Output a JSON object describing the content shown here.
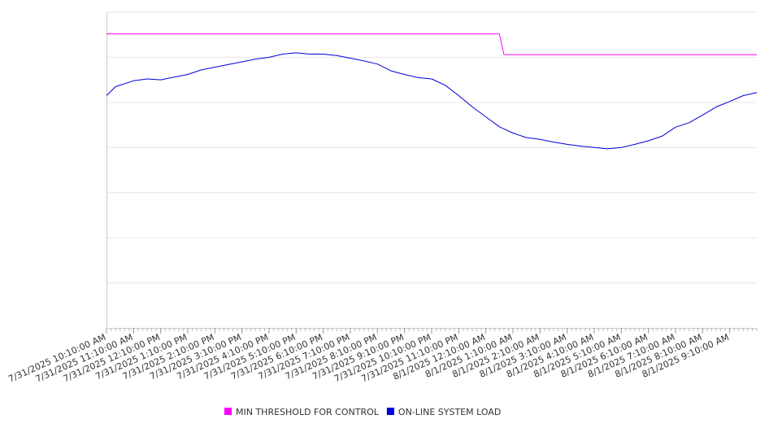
{
  "chart_data": {
    "type": "line",
    "title": "",
    "xlabel": "",
    "ylabel": "",
    "ylim": [
      0,
      7
    ],
    "grid": true,
    "legend_position": "bottom-center",
    "x_start": "7/31/2025 10:10:00 AM",
    "x_end": "8/1/2025 10:10:00 AM",
    "x_tick_labels": [
      "7/31/2025 10:10:00 AM",
      "7/31/2025 11:10:00 AM",
      "7/31/2025 12:10:00 PM",
      "7/31/2025 1:10:00 PM",
      "7/31/2025 2:10:00 PM",
      "7/31/2025 3:10:00 PM",
      "7/31/2025 4:10:00 PM",
      "7/31/2025 5:10:00 PM",
      "7/31/2025 6:10:00 PM",
      "7/31/2025 7:10:00 PM",
      "7/31/2025 8:10:00 PM",
      "7/31/2025 9:10:00 PM",
      "7/31/2025 10:10:00 PM",
      "7/31/2025 11:10:00 PM",
      "8/1/2025 12:10:00 AM",
      "8/1/2025 1:10:00 AM",
      "8/1/2025 2:10:00 AM",
      "8/1/2025 3:10:00 AM",
      "8/1/2025 4:10:00 AM",
      "8/1/2025 5:10:00 AM",
      "8/1/2025 6:10:00 AM",
      "8/1/2025 7:10:00 AM",
      "8/1/2025 8:10:00 AM",
      "8/1/2025 9:10:00 AM"
    ],
    "series": [
      {
        "name": "MIN THRESHOLD FOR CONTROL",
        "color": "#ff00ff",
        "x": [
          "7/31/2025 10:10:00 AM",
          "8/1/2025 12:40:00 AM",
          "8/1/2025 12:50:00 AM",
          "8/1/2025 10:10:00 AM"
        ],
        "y": [
          6.52,
          6.52,
          6.06,
          6.06
        ]
      },
      {
        "name": "ON-LINE SYSTEM LOAD",
        "color": "#0000dd",
        "x": [
          "7/31/2025 10:10:00 AM",
          "7/31/2025 10:30:00 AM",
          "7/31/2025 11:10:00 AM",
          "7/31/2025 11:40:00 AM",
          "7/31/2025 12:10:00 PM",
          "7/31/2025 12:40:00 PM",
          "7/31/2025 1:10:00 PM",
          "7/31/2025 1:40:00 PM",
          "7/31/2025 2:10:00 PM",
          "7/31/2025 2:40:00 PM",
          "7/31/2025 3:10:00 PM",
          "7/31/2025 3:40:00 PM",
          "7/31/2025 4:10:00 PM",
          "7/31/2025 4:40:00 PM",
          "7/31/2025 5:10:00 PM",
          "7/31/2025 5:40:00 PM",
          "7/31/2025 6:10:00 PM",
          "7/31/2025 6:40:00 PM",
          "7/31/2025 7:10:00 PM",
          "7/31/2025 7:40:00 PM",
          "7/31/2025 8:10:00 PM",
          "7/31/2025 8:40:00 PM",
          "7/31/2025 9:10:00 PM",
          "7/31/2025 9:40:00 PM",
          "7/31/2025 10:10:00 PM",
          "7/31/2025 10:40:00 PM",
          "7/31/2025 11:10:00 PM",
          "7/31/2025 11:40:00 PM",
          "8/1/2025 12:10:00 AM",
          "8/1/2025 12:40:00 AM",
          "8/1/2025 1:10:00 AM",
          "8/1/2025 1:40:00 AM",
          "8/1/2025 2:10:00 AM",
          "8/1/2025 2:40:00 AM",
          "8/1/2025 3:10:00 AM",
          "8/1/2025 3:40:00 AM",
          "8/1/2025 4:10:00 AM",
          "8/1/2025 4:40:00 AM",
          "8/1/2025 5:10:00 AM",
          "8/1/2025 5:40:00 AM",
          "8/1/2025 6:10:00 AM",
          "8/1/2025 6:40:00 AM",
          "8/1/2025 7:10:00 AM",
          "8/1/2025 7:40:00 AM",
          "8/1/2025 8:10:00 AM",
          "8/1/2025 8:40:00 AM",
          "8/1/2025 9:10:00 AM",
          "8/1/2025 9:40:00 AM",
          "8/1/2025 10:10:00 AM"
        ],
        "y": [
          5.15,
          5.35,
          5.48,
          5.52,
          5.5,
          5.56,
          5.62,
          5.72,
          5.78,
          5.84,
          5.9,
          5.96,
          6.0,
          6.07,
          6.1,
          6.07,
          6.07,
          6.04,
          5.98,
          5.92,
          5.85,
          5.7,
          5.62,
          5.55,
          5.52,
          5.38,
          5.15,
          4.9,
          4.68,
          4.46,
          4.32,
          4.22,
          4.18,
          4.12,
          4.07,
          4.03,
          4.0,
          3.97,
          4.0,
          4.07,
          4.15,
          4.25,
          4.45,
          4.55,
          4.72,
          4.9,
          5.02,
          5.15,
          5.22
        ]
      }
    ]
  }
}
